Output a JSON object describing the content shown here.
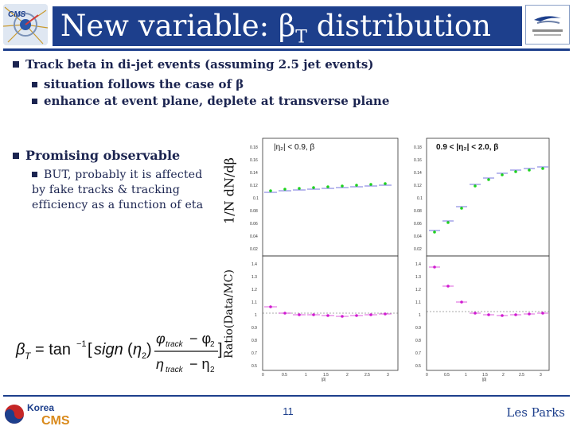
{
  "header": {
    "title_prefix": "New variable: β",
    "title_sub": "T",
    "title_suffix": " distribution",
    "title_bg": "#1d3f8c"
  },
  "bullets": {
    "main1": "Track beta in di-jet events (assuming 2.5 jet events)",
    "sub1": "situation follows the case of  β",
    "sub2": "enhance at event plane, deplete at transverse plane",
    "main2": "Promising observable",
    "sub3": "BUT, probably it is affected by fake tracks & tracking efficiency as a function of eta"
  },
  "plots": {
    "ylabel_top": "1/N dN/dβ",
    "ylabel_bottom": "Ratio(Data/MC)",
    "left_top_title": "|η2| < 0.9, βT",
    "right_top_title": "0.9 < |η2| < 2.0, βT",
    "x_ticks": [
      "0",
      "0.5",
      "1",
      "1.5",
      "2",
      "2.5",
      "3"
    ],
    "top_y_ticks": [
      "0.18",
      "0.16",
      "0.14",
      "0.12",
      "0.1",
      "0.08",
      "0.06",
      "0.04",
      "0.02"
    ],
    "bottom_y_ticks": [
      "1.4",
      "1.3",
      "1.2",
      "1.1",
      "1",
      "0.9",
      "0.8",
      "0.7",
      "0.6",
      "0.5"
    ],
    "x_axis_label": "|β|",
    "marker_data_color": "#1ed21e",
    "marker_ratio_color": "#d01bd0",
    "marker_mc_color": "#3a3ad0"
  },
  "footer": {
    "logo_text_top": "Korea",
    "logo_text_bottom": "CMS",
    "page_number": "11",
    "author": "Les Parks",
    "accent": "#1d3f8c"
  }
}
